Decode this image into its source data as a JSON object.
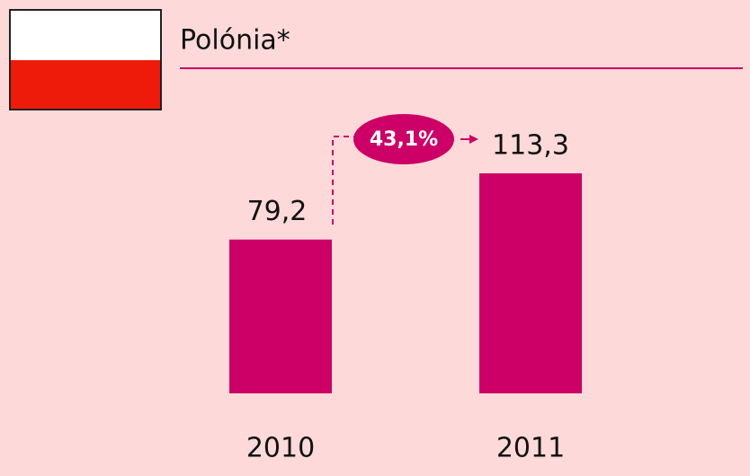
{
  "chart_data": {
    "type": "bar",
    "title": "Polónia*",
    "categories": [
      "2010",
      "2011"
    ],
    "values": [
      79.2,
      113.3
    ],
    "value_labels": [
      "79,2",
      "113,3"
    ],
    "color": "#cc0066",
    "annotation": "43,1%"
  }
}
